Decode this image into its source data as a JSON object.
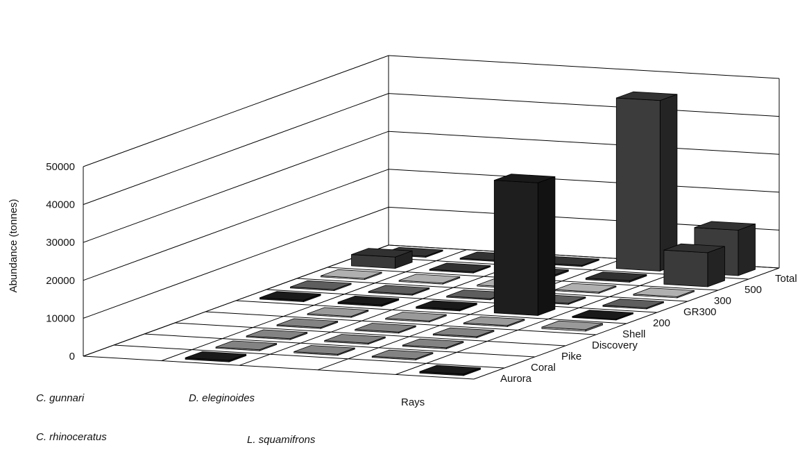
{
  "chart_data": {
    "type": "bar",
    "ylabel": "Abundance (tonnes)",
    "ylim": [
      0,
      50000
    ],
    "yticks": [
      0,
      10000,
      20000,
      30000,
      40000,
      50000
    ],
    "categories": [
      "C. gunnari",
      "C. rhinoceratus",
      "D. eleginoides",
      "L. squamifrons",
      "Rays"
    ],
    "series": [
      {
        "name": "Aurora",
        "values": [
          0,
          400,
          0,
          0,
          400
        ]
      },
      {
        "name": "Coral",
        "values": [
          0,
          300,
          300,
          300,
          0
        ]
      },
      {
        "name": "Pike",
        "values": [
          0,
          300,
          300,
          300,
          0
        ]
      },
      {
        "name": "Discovery",
        "values": [
          0,
          300,
          300,
          300,
          0
        ]
      },
      {
        "name": "Shell",
        "values": [
          0,
          300,
          300,
          300,
          400
        ]
      },
      {
        "name": "200",
        "values": [
          400,
          400,
          400,
          35000,
          300
        ]
      },
      {
        "name": "GR300",
        "values": [
          300,
          300,
          300,
          300,
          300
        ]
      },
      {
        "name": "300",
        "values": [
          300,
          300,
          300,
          300,
          300
        ]
      },
      {
        "name": "500",
        "values": [
          3000,
          300,
          400,
          400,
          9000
        ]
      },
      {
        "name": "Total",
        "values": [
          300,
          300,
          300,
          45000,
          12000
        ]
      }
    ]
  }
}
